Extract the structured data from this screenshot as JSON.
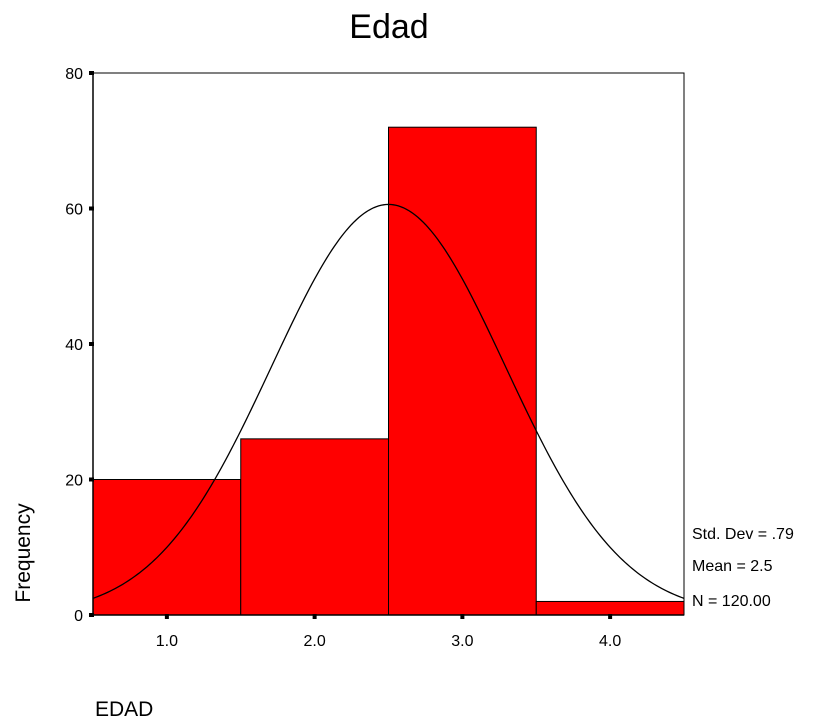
{
  "chart_data": {
    "type": "bar",
    "title": "Edad",
    "xlabel": "EDAD",
    "ylabel": "Frequency",
    "categories": [
      "1.0",
      "2.0",
      "3.0",
      "4.0"
    ],
    "bins": [
      {
        "x": 1.0,
        "from": 0.5,
        "to": 1.5,
        "value": 20
      },
      {
        "x": 2.0,
        "from": 1.5,
        "to": 2.5,
        "value": 26
      },
      {
        "x": 3.0,
        "from": 2.5,
        "to": 3.5,
        "value": 72
      },
      {
        "x": 4.0,
        "from": 3.5,
        "to": 4.5,
        "value": 2
      }
    ],
    "xlim": [
      0.5,
      4.5
    ],
    "ylim": [
      0,
      80
    ],
    "yticks": [
      0,
      20,
      40,
      60,
      80
    ],
    "xticks": [
      1.0,
      2.0,
      3.0,
      4.0
    ],
    "xtick_labels": [
      "1.0",
      "2.0",
      "3.0",
      "4.0"
    ],
    "normal_curve": {
      "mean": 2.5,
      "std_dev": 0.79,
      "n": 120,
      "bin_width": 1
    },
    "grid": false,
    "bar_color": "#ff0000",
    "stats": {
      "std_dev": "Std. Dev = .79",
      "mean": "Mean = 2.5",
      "n": "N = 120.00"
    }
  }
}
